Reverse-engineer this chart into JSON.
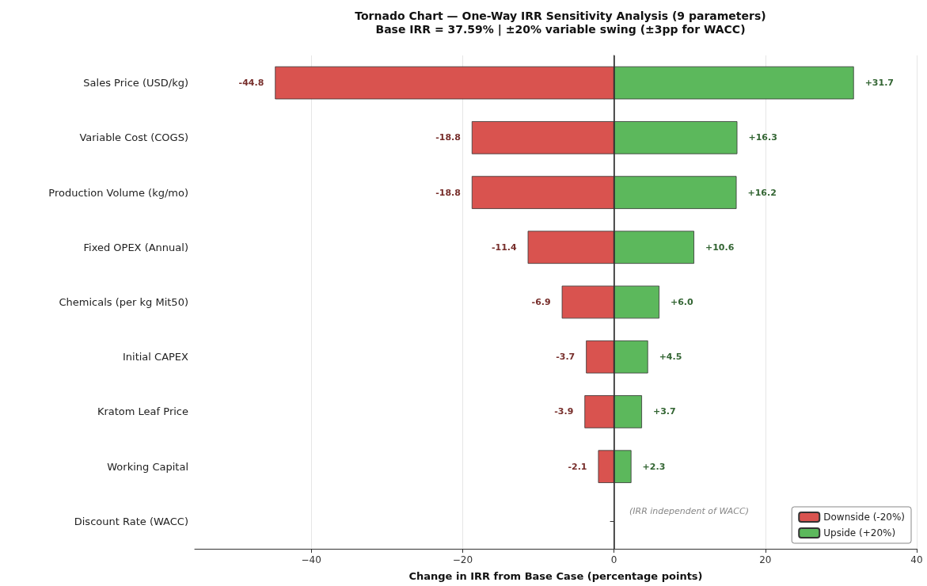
{
  "chart_data": {
    "type": "bar",
    "orientation": "horizontal",
    "title": "Tornado Chart — One-Way IRR Sensitivity Analysis (9 parameters)",
    "subtitle": "Base IRR = 37.59% | ±20% variable swing (±3pp for WACC)",
    "xlabel": "Change in IRR from Base Case (percentage points)",
    "categories": [
      "Sales Price (USD/kg)",
      "Variable Cost (COGS)",
      "Production Volume (kg/mo)",
      "Fixed OPEX (Annual)",
      "Chemicals (per kg Mit50)",
      "Initial CAPEX",
      "Kratom Leaf Price",
      "Working Capital",
      "Discount Rate (WACC)"
    ],
    "series": [
      {
        "name": "Downside (-20%)",
        "color": "#d9534f",
        "values": [
          -44.8,
          -18.8,
          -18.8,
          -11.4,
          -6.9,
          -3.7,
          -3.9,
          -2.1,
          null
        ],
        "value_labels": [
          "-44.8",
          "-18.8",
          "-18.8",
          "-11.4",
          "-6.9",
          "-3.7",
          "-3.9",
          "-2.1",
          null
        ]
      },
      {
        "name": "Upside (+20%)",
        "color": "#5cb85c",
        "values": [
          31.7,
          16.3,
          16.2,
          10.6,
          6.0,
          4.5,
          3.7,
          2.3,
          null
        ],
        "value_labels": [
          "+31.7",
          "+16.3",
          "+16.2",
          "+10.6",
          "+6.0",
          "+4.5",
          "+3.7",
          "+2.3",
          null
        ]
      }
    ],
    "xlim": [
      -55.4,
      40
    ],
    "xticks": [
      -40,
      -20,
      0,
      20,
      40
    ],
    "ref_lines": [
      {
        "axis": "x",
        "value": 0,
        "color": "#333333"
      }
    ],
    "annotations": [
      "(IRR independent of WACC)"
    ],
    "stacked": true,
    "grid": "x",
    "legend": "bottom right"
  }
}
